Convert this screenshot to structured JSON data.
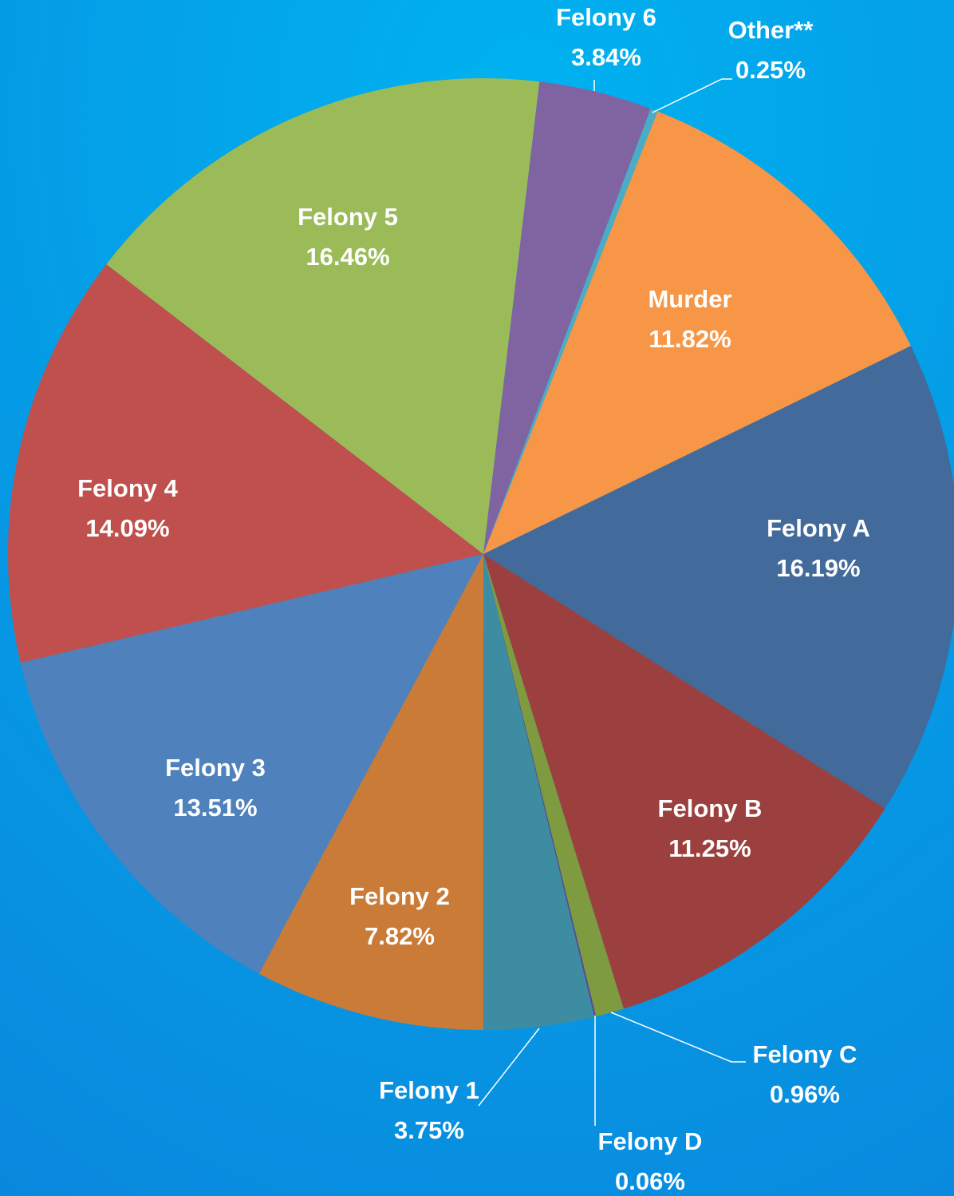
{
  "chart_data": {
    "type": "pie",
    "categories": [
      "Murder",
      "Felony A",
      "Felony B",
      "Felony C",
      "Felony D",
      "Felony 1",
      "Felony 2",
      "Felony 3",
      "Felony 4",
      "Felony 5",
      "Felony 6",
      "Other**"
    ],
    "values": [
      11.82,
      16.19,
      11.25,
      0.96,
      0.06,
      3.75,
      7.82,
      13.51,
      14.09,
      16.46,
      3.84,
      0.25
    ],
    "value_labels": [
      "11.82%",
      "16.19%",
      "11.25%",
      "0.96%",
      "0.06%",
      "3.75%",
      "7.82%",
      "13.51%",
      "14.09%",
      "16.46%",
      "3.84%",
      "0.25%"
    ],
    "colors": [
      "#f79646",
      "#426a9a",
      "#9b403e",
      "#7e9b40",
      "#5d4b8c",
      "#3e8ca1",
      "#c97b37",
      "#4f81bd",
      "#c0504d",
      "#9bbb59",
      "#8064a2",
      "#4bacc6"
    ]
  }
}
